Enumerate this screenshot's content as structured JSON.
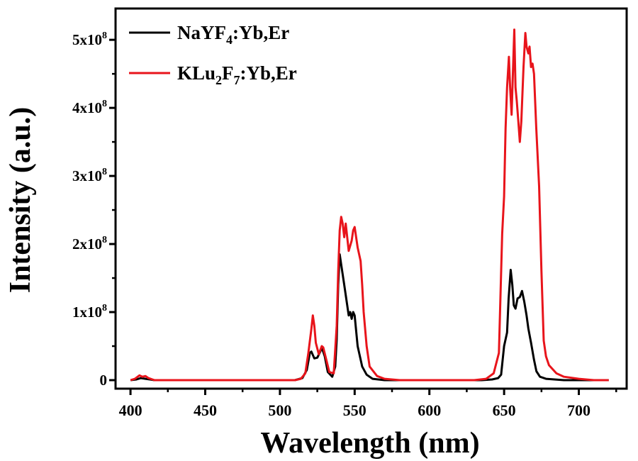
{
  "chart_data": {
    "type": "line",
    "title": "",
    "xlabel": "Wavelength (nm)",
    "ylabel": "Intensity (a.u.)",
    "xlim": [
      390,
      732
    ],
    "ylim": [
      -12500000.0,
      546000000.0
    ],
    "grid": false,
    "legend_position": "top-left",
    "xticks": [
      400,
      450,
      500,
      550,
      600,
      650,
      700
    ],
    "xtick_labels": [
      "400",
      "450",
      "500",
      "550",
      "600",
      "650",
      "700"
    ],
    "yticks": [
      0,
      100000000.0,
      200000000.0,
      300000000.0,
      400000000.0,
      500000000.0
    ],
    "ytick_labels": [
      {
        "base": "0",
        "exp": ""
      },
      {
        "base": "1x10",
        "exp": "8"
      },
      {
        "base": "2x10",
        "exp": "8"
      },
      {
        "base": "3x10",
        "exp": "8"
      },
      {
        "base": "4x10",
        "exp": "8"
      },
      {
        "base": "5x10",
        "exp": "8"
      }
    ],
    "series": [
      {
        "name": "NaYF4:Yb,Er",
        "label_parts": [
          {
            "t": "NaYF"
          },
          {
            "sub": "4"
          },
          {
            "t": ":Yb,Er"
          }
        ],
        "color": "#000000",
        "points_1e8": [
          [
            400,
            0
          ],
          [
            404,
            0.01
          ],
          [
            407,
            0.03
          ],
          [
            410,
            0.02
          ],
          [
            413,
            0.01
          ],
          [
            416,
            0
          ],
          [
            510,
            0
          ],
          [
            515,
            0.03
          ],
          [
            518,
            0.15
          ],
          [
            520,
            0.4
          ],
          [
            521,
            0.42
          ],
          [
            523,
            0.32
          ],
          [
            525,
            0.33
          ],
          [
            527,
            0.42
          ],
          [
            528,
            0.48
          ],
          [
            530,
            0.35
          ],
          [
            532,
            0.12
          ],
          [
            535,
            0.05
          ],
          [
            537,
            0.2
          ],
          [
            538,
            0.6
          ],
          [
            539,
            1.4
          ],
          [
            540,
            1.85
          ],
          [
            541,
            1.7
          ],
          [
            543,
            1.4
          ],
          [
            545,
            1.1
          ],
          [
            546,
            0.95
          ],
          [
            547,
            1.0
          ],
          [
            548,
            0.9
          ],
          [
            549,
            1.0
          ],
          [
            550,
            0.95
          ],
          [
            552,
            0.5
          ],
          [
            555,
            0.2
          ],
          [
            558,
            0.08
          ],
          [
            562,
            0.02
          ],
          [
            570,
            0
          ],
          [
            635,
            0
          ],
          [
            642,
            0.01
          ],
          [
            646,
            0.03
          ],
          [
            648,
            0.08
          ],
          [
            650,
            0.5
          ],
          [
            651,
            0.6
          ],
          [
            652,
            0.7
          ],
          [
            653,
            1.2
          ],
          [
            654.4,
            1.62
          ],
          [
            655.5,
            1.4
          ],
          [
            656.5,
            1.1
          ],
          [
            657.6,
            1.05
          ],
          [
            659,
            1.2
          ],
          [
            660.5,
            1.22
          ],
          [
            662,
            1.31
          ],
          [
            663.5,
            1.15
          ],
          [
            665,
            0.95
          ],
          [
            666.2,
            0.76
          ],
          [
            668,
            0.55
          ],
          [
            670,
            0.3
          ],
          [
            671.6,
            0.13
          ],
          [
            674,
            0.05
          ],
          [
            678,
            0.02
          ],
          [
            690,
            0
          ],
          [
            720,
            0
          ]
        ]
      },
      {
        "name": "KLu2F7:Yb,Er",
        "label_parts": [
          {
            "t": "KLu"
          },
          {
            "sub": "2"
          },
          {
            "t": "F"
          },
          {
            "sub": "7"
          },
          {
            "t": ":Yb,Er"
          }
        ],
        "color": "#e8141b",
        "points_1e8": [
          [
            400,
            0
          ],
          [
            403,
            0.02
          ],
          [
            406,
            0.07
          ],
          [
            408,
            0.05
          ],
          [
            410,
            0.06
          ],
          [
            412,
            0.03
          ],
          [
            416,
            0
          ],
          [
            510,
            0
          ],
          [
            514,
            0.02
          ],
          [
            517,
            0.1
          ],
          [
            519,
            0.4
          ],
          [
            521,
            0.75
          ],
          [
            522,
            0.95
          ],
          [
            523,
            0.8
          ],
          [
            524,
            0.55
          ],
          [
            526,
            0.38
          ],
          [
            528,
            0.5
          ],
          [
            529,
            0.48
          ],
          [
            531,
            0.3
          ],
          [
            533,
            0.12
          ],
          [
            536,
            0.1
          ],
          [
            538,
            0.8
          ],
          [
            539,
            1.6
          ],
          [
            540,
            2.2
          ],
          [
            541,
            2.4
          ],
          [
            542,
            2.3
          ],
          [
            543,
            2.1
          ],
          [
            544,
            2.3
          ],
          [
            545,
            2.1
          ],
          [
            546,
            1.9
          ],
          [
            548,
            2.05
          ],
          [
            549,
            2.2
          ],
          [
            550,
            2.25
          ],
          [
            551,
            2.1
          ],
          [
            552,
            1.95
          ],
          [
            554,
            1.75
          ],
          [
            555,
            1.4
          ],
          [
            556,
            1.0
          ],
          [
            558,
            0.5
          ],
          [
            560,
            0.2
          ],
          [
            565,
            0.06
          ],
          [
            570,
            0.02
          ],
          [
            580,
            0
          ],
          [
            630,
            0
          ],
          [
            638,
            0.02
          ],
          [
            643,
            0.1
          ],
          [
            646.5,
            0.4
          ],
          [
            647.5,
            1.2
          ],
          [
            648.7,
            2.15
          ],
          [
            650,
            2.7
          ],
          [
            651,
            3.7
          ],
          [
            652,
            4.3
          ],
          [
            653.2,
            4.75
          ],
          [
            654,
            4.3
          ],
          [
            655,
            3.9
          ],
          [
            656,
            4.6
          ],
          [
            656.8,
            5.15
          ],
          [
            657.6,
            4.3
          ],
          [
            658.5,
            4.1
          ],
          [
            659.5,
            3.8
          ],
          [
            660.5,
            3.5
          ],
          [
            661.5,
            3.8
          ],
          [
            663,
            4.6
          ],
          [
            664.2,
            5.1
          ],
          [
            665,
            4.9
          ],
          [
            666.2,
            4.8
          ],
          [
            667,
            4.9
          ],
          [
            668,
            4.6
          ],
          [
            669,
            4.65
          ],
          [
            670,
            4.5
          ],
          [
            671.5,
            3.7
          ],
          [
            673.4,
            2.85
          ],
          [
            675,
            1.6
          ],
          [
            676.5,
            0.58
          ],
          [
            678,
            0.35
          ],
          [
            680,
            0.22
          ],
          [
            685,
            0.1
          ],
          [
            690,
            0.05
          ],
          [
            700,
            0.02
          ],
          [
            710,
            0
          ],
          [
            720,
            0
          ]
        ]
      }
    ]
  }
}
